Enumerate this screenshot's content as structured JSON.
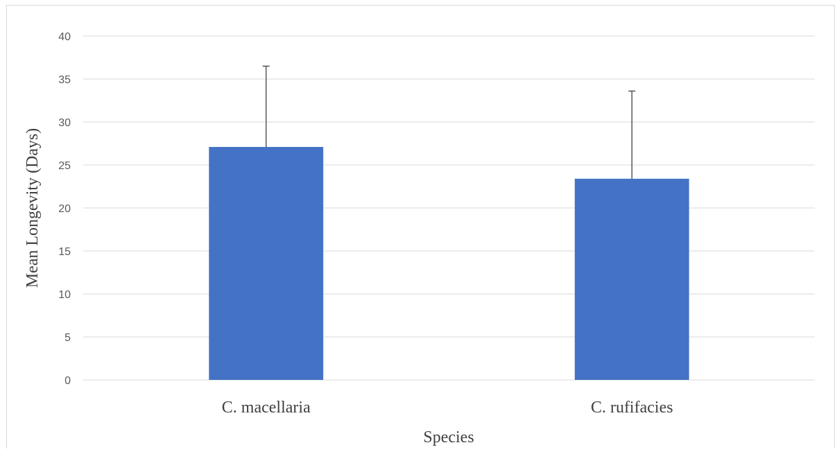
{
  "chart_data": {
    "type": "bar",
    "title": "",
    "xlabel": "Species",
    "ylabel": "Mean Longevity (Days)",
    "categories": [
      "C. macellaria",
      "C. rufifacies"
    ],
    "series": [
      {
        "values": [
          27.1,
          23.4
        ],
        "error_upper": [
          9.4,
          10.2
        ]
      }
    ],
    "ylim": [
      0,
      40
    ],
    "yticks": [
      0,
      5,
      10,
      15,
      20,
      25,
      30,
      35,
      40
    ],
    "grid": true,
    "legend": "none",
    "colors": {
      "bar": "#4472c4",
      "grid": "#d9d9d9",
      "error_bar": "#404040",
      "tick_text": "#595959",
      "axis_title": "#404040"
    }
  }
}
